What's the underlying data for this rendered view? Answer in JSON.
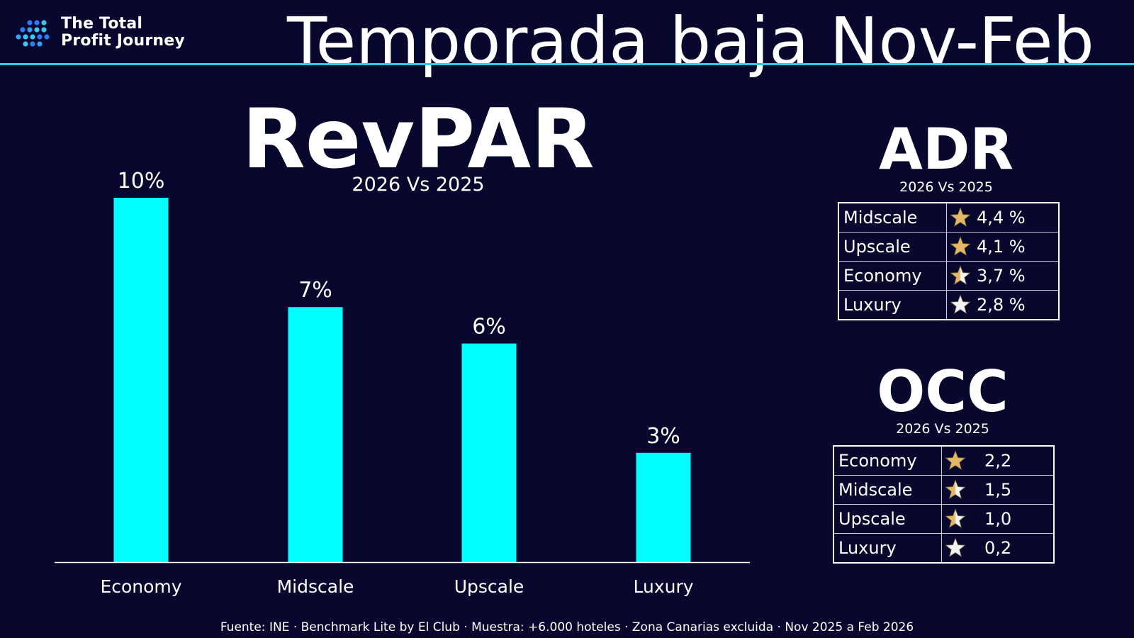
{
  "brand": {
    "line1": "The Total",
    "line2": "Profit Journey",
    "accent": "#33c7ea"
  },
  "title": "Temporada baja Nov-Feb",
  "chart_data": {
    "type": "bar",
    "title": "RevPAR",
    "subtitle": "2026 Vs 2025",
    "categories": [
      "Economy",
      "Midscale",
      "Upscale",
      "Luxury"
    ],
    "values": [
      10,
      7,
      6,
      3
    ],
    "data_labels": [
      "10%",
      "7%",
      "6%",
      "3%"
    ],
    "ylim": [
      0,
      10
    ],
    "bar_color": "#00ffff",
    "grid": false
  },
  "adr": {
    "title": "ADR",
    "subtitle": "2026 Vs 2025",
    "rows": [
      {
        "label": "Midscale",
        "value": "4,4 %",
        "star": "star-gold-icon"
      },
      {
        "label": "Upscale",
        "value": "4,1 %",
        "star": "star-gold-icon"
      },
      {
        "label": "Economy",
        "value": "3,7 %",
        "star": "star-half-gold-icon"
      },
      {
        "label": "Luxury",
        "value": "2,8 %",
        "star": "star-white-icon"
      }
    ]
  },
  "occ": {
    "title": "OCC",
    "subtitle": "2026 Vs 2025",
    "rows": [
      {
        "label": "Economy",
        "value": "2,2",
        "star": "star-gold-icon"
      },
      {
        "label": "Midscale",
        "value": "1,5",
        "star": "star-half-gold-icon"
      },
      {
        "label": "Upscale",
        "value": "1,0",
        "star": "star-half-gold-icon"
      },
      {
        "label": "Luxury",
        "value": "0,2",
        "star": "star-white-icon"
      }
    ]
  },
  "footer": "Fuente: INE · Benchmark Lite by El Club · Muestra: +6.000 hoteles · Zona Canarias excluida · Nov 2025 a Feb 2026"
}
